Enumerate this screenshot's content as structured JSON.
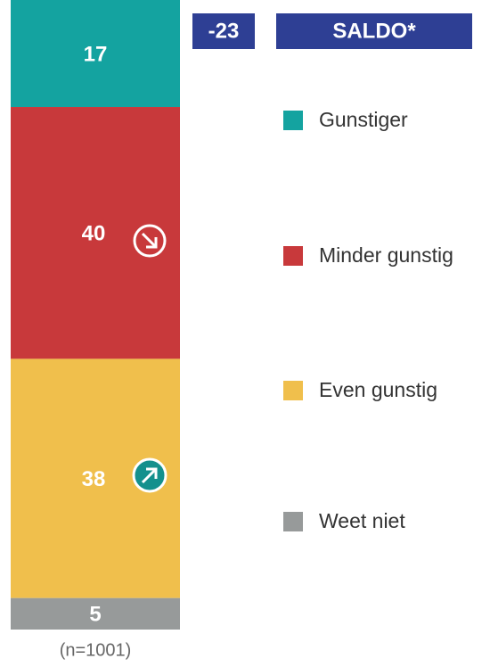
{
  "chart_data": {
    "type": "bar",
    "stacked": true,
    "categories": [
      null
    ],
    "series": [
      {
        "name": "Gunstiger",
        "color": "#14a3a0",
        "values": [
          17
        ]
      },
      {
        "name": "Minder gunstig",
        "color": "#c8393b",
        "values": [
          40
        ]
      },
      {
        "name": "Even gunstig",
        "color": "#f0bf4c",
        "values": [
          38
        ]
      },
      {
        "name": "Weet niet",
        "color": "#979a9a",
        "values": [
          5
        ]
      }
    ],
    "ylim": [
      0,
      100
    ],
    "saldo": {
      "label": "SALDO*",
      "value": -23,
      "color": "#2e3f94"
    },
    "note": "(n=1001)"
  }
}
